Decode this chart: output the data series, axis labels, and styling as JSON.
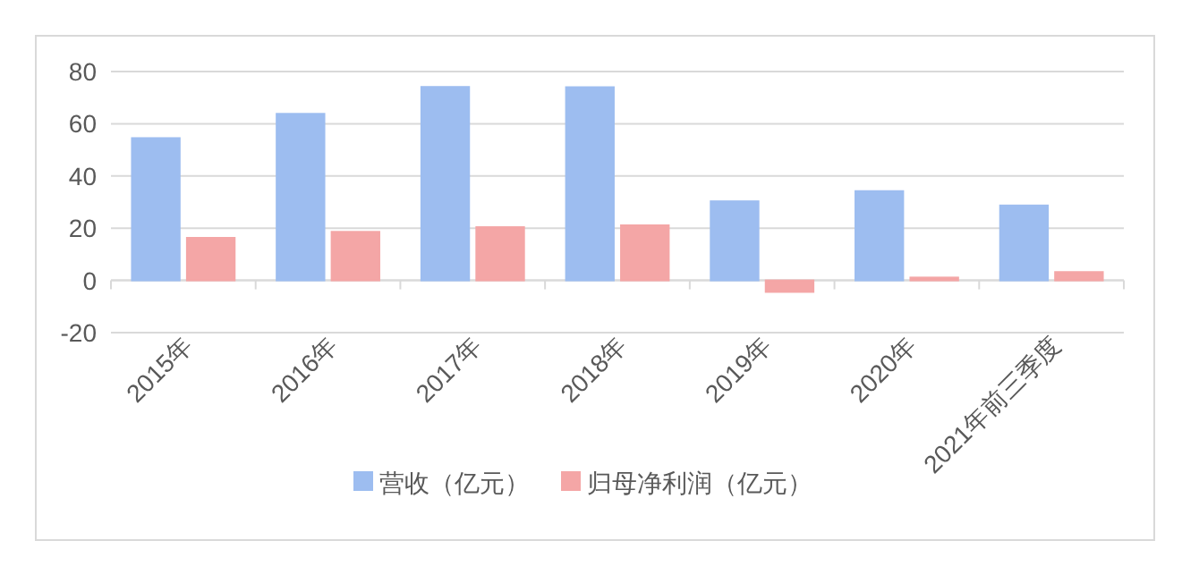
{
  "chart_data": {
    "type": "bar",
    "categories": [
      "2015年",
      "2016年",
      "2017年",
      "2018年",
      "2019年",
      "2020年",
      "2021年前三季度"
    ],
    "series": [
      {
        "name": "营收（亿元）",
        "color": "#9dbdf0",
        "values": [
          54.5,
          63.8,
          74.1,
          74,
          30.3,
          34.2,
          28.7
        ]
      },
      {
        "name": "归母净利润（亿元）",
        "color": "#f4a6a6",
        "values": [
          16.3,
          18.6,
          20.4,
          21.1,
          -4.4,
          1.1,
          3.2
        ]
      }
    ],
    "ylim": [
      -20,
      80
    ],
    "yticks": [
      -20,
      0,
      20,
      40,
      60,
      80
    ],
    "grid": "y",
    "legend": "bottom"
  }
}
